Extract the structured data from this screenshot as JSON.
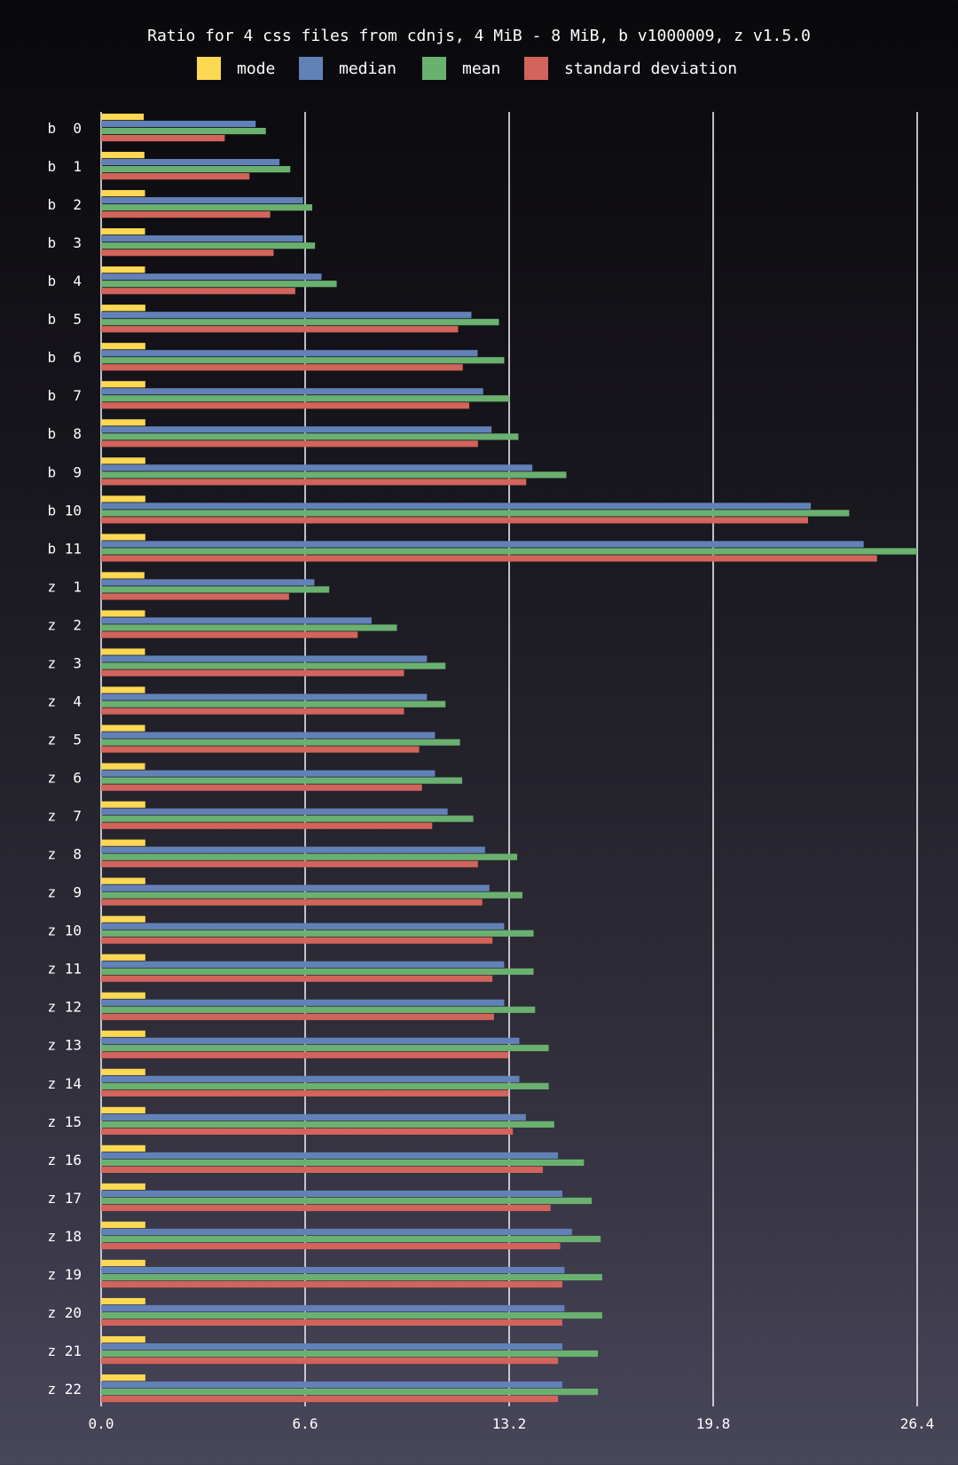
{
  "chart_data": {
    "type": "bar",
    "orientation": "horizontal",
    "title": "Ratio for 4 css files from cdnjs, 4 MiB - 8 MiB, b v1000009, z v1.5.0",
    "legend_position": "top",
    "grid": "vertical",
    "xlim": [
      0,
      26.4
    ],
    "xticks": [
      "0.0",
      "6.6",
      "13.2",
      "19.8",
      "26.4"
    ],
    "categories": [
      "b  0",
      "b  1",
      "b  2",
      "b  3",
      "b  4",
      "b  5",
      "b  6",
      "b  7",
      "b  8",
      "b  9",
      "b 10",
      "b 11",
      "z  1",
      "z  2",
      "z  3",
      "z  4",
      "z  5",
      "z  6",
      "z  7",
      "z  8",
      "z  9",
      "z 10",
      "z 11",
      "z 12",
      "z 13",
      "z 14",
      "z 15",
      "z 16",
      "z 17",
      "z 18",
      "z 19",
      "z 20",
      "z 21",
      "z 22"
    ],
    "series": [
      {
        "name": "mode",
        "color": "#fdd853",
        "values": [
          1.38,
          1.4,
          1.42,
          1.42,
          1.42,
          1.43,
          1.43,
          1.43,
          1.43,
          1.43,
          1.43,
          1.43,
          1.4,
          1.42,
          1.42,
          1.42,
          1.42,
          1.42,
          1.43,
          1.43,
          1.43,
          1.43,
          1.43,
          1.43,
          1.43,
          1.43,
          1.43,
          1.43,
          1.43,
          1.43,
          1.43,
          1.43,
          1.43,
          1.43
        ]
      },
      {
        "name": "median",
        "color": "#6281b7",
        "values": [
          5.0,
          5.77,
          6.53,
          6.53,
          7.13,
          11.98,
          12.18,
          12.36,
          12.63,
          13.95,
          22.96,
          24.67,
          6.9,
          8.75,
          10.54,
          10.54,
          10.8,
          10.8,
          11.21,
          12.42,
          12.56,
          13.04,
          13.04,
          13.04,
          13.53,
          13.53,
          13.74,
          14.78,
          14.92,
          15.23,
          14.99,
          14.99,
          14.92,
          14.92
        ]
      },
      {
        "name": "mean",
        "color": "#6ab170",
        "values": [
          5.33,
          6.12,
          6.83,
          6.92,
          7.62,
          12.87,
          13.04,
          13.21,
          13.5,
          15.05,
          24.2,
          26.4,
          7.38,
          9.57,
          11.14,
          11.14,
          11.61,
          11.68,
          12.04,
          13.46,
          13.63,
          13.99,
          13.99,
          14.04,
          14.48,
          14.48,
          14.66,
          15.62,
          15.87,
          16.16,
          16.21,
          16.21,
          16.07,
          16.07
        ]
      },
      {
        "name": "standard deviation",
        "color": "#d2645c",
        "values": [
          4.0,
          4.8,
          5.47,
          5.58,
          6.28,
          11.55,
          11.7,
          11.91,
          12.19,
          13.75,
          22.87,
          25.1,
          6.08,
          8.3,
          9.8,
          9.8,
          10.29,
          10.38,
          10.71,
          12.19,
          12.33,
          12.66,
          12.66,
          12.71,
          13.18,
          13.18,
          13.32,
          14.29,
          14.54,
          14.85,
          14.92,
          14.92,
          14.78,
          14.78
        ]
      }
    ]
  }
}
